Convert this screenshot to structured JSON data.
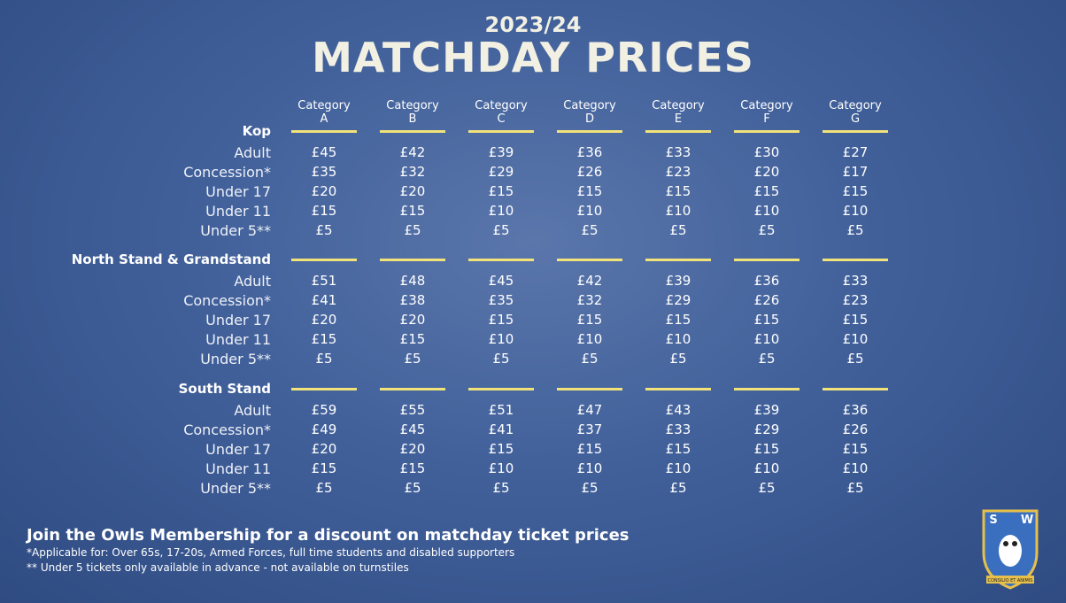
{
  "header": {
    "season": "2023/24",
    "title": "MATCHDAY PRICES"
  },
  "columns": [
    [
      "Category",
      "A"
    ],
    [
      "Category",
      "B"
    ],
    [
      "Category",
      "C"
    ],
    [
      "Category",
      "D"
    ],
    [
      "Category",
      "E"
    ],
    [
      "Category",
      "F"
    ],
    [
      "Category",
      "G"
    ]
  ],
  "sections": [
    {
      "name": "Kop",
      "rows": [
        {
          "label": "Adult",
          "prices": [
            "£45",
            "£42",
            "£39",
            "£36",
            "£33",
            "£30",
            "£27"
          ]
        },
        {
          "label": "Concession*",
          "prices": [
            "£35",
            "£32",
            "£29",
            "£26",
            "£23",
            "£20",
            "£17"
          ]
        },
        {
          "label": "Under 17",
          "prices": [
            "£20",
            "£20",
            "£15",
            "£15",
            "£15",
            "£15",
            "£15"
          ]
        },
        {
          "label": "Under 11",
          "prices": [
            "£15",
            "£15",
            "£10",
            "£10",
            "£10",
            "£10",
            "£10"
          ]
        },
        {
          "label": "Under 5**",
          "prices": [
            "£5",
            "£5",
            "£5",
            "£5",
            "£5",
            "£5",
            "£5"
          ]
        }
      ]
    },
    {
      "name": "North Stand & Grandstand",
      "rows": [
        {
          "label": "Adult",
          "prices": [
            "£51",
            "£48",
            "£45",
            "£42",
            "£39",
            "£36",
            "£33"
          ]
        },
        {
          "label": "Concession*",
          "prices": [
            "£41",
            "£38",
            "£35",
            "£32",
            "£29",
            "£26",
            "£23"
          ]
        },
        {
          "label": "Under 17",
          "prices": [
            "£20",
            "£20",
            "£15",
            "£15",
            "£15",
            "£15",
            "£15"
          ]
        },
        {
          "label": "Under 11",
          "prices": [
            "£15",
            "£15",
            "£10",
            "£10",
            "£10",
            "£10",
            "£10"
          ]
        },
        {
          "label": "Under 5**",
          "prices": [
            "£5",
            "£5",
            "£5",
            "£5",
            "£5",
            "£5",
            "£5"
          ]
        }
      ]
    },
    {
      "name": "South Stand",
      "rows": [
        {
          "label": "Adult",
          "prices": [
            "£59",
            "£55",
            "£51",
            "£47",
            "£43",
            "£39",
            "£36"
          ]
        },
        {
          "label": "Concession*",
          "prices": [
            "£49",
            "£45",
            "£41",
            "£37",
            "£33",
            "£29",
            "£26"
          ]
        },
        {
          "label": "Under 17",
          "prices": [
            "£20",
            "£20",
            "£15",
            "£15",
            "£15",
            "£15",
            "£15"
          ]
        },
        {
          "label": "Under 11",
          "prices": [
            "£15",
            "£15",
            "£10",
            "£10",
            "£10",
            "£10",
            "£10"
          ]
        },
        {
          "label": "Under 5**",
          "prices": [
            "£5",
            "£5",
            "£5",
            "£5",
            "£5",
            "£5",
            "£5"
          ]
        }
      ]
    }
  ],
  "footer": {
    "headline": "Join the Owls Membership for a discount on matchday ticket prices",
    "notes": [
      "*Applicable for: Over 65s, 17-20s, Armed Forces, full time students and disabled supporters",
      "** Under 5 tickets only available in advance - not available on turnstiles"
    ]
  },
  "crest": {
    "left": "S",
    "right": "W",
    "motto": "CONSILIO ET ANIMIS"
  }
}
